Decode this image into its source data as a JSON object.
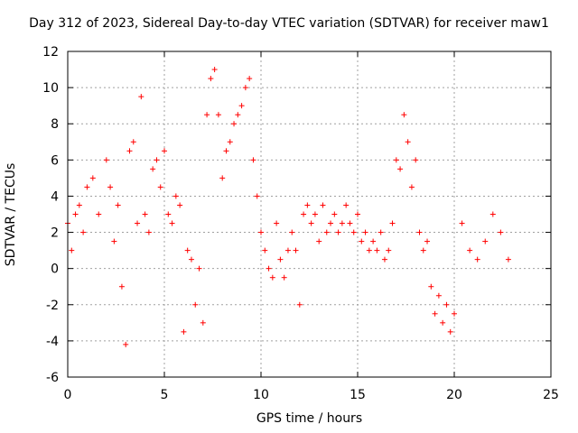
{
  "chart_data": {
    "type": "scatter",
    "title": "Day 312 of 2023, Sidereal Day-to-day VTEC variation (SDTVAR) for receiver maw1",
    "xlabel": "GPS time / hours",
    "ylabel": "SDTVAR / TECUs",
    "xlim": [
      0,
      25
    ],
    "ylim": [
      -6,
      12
    ],
    "xticks": [
      "0",
      "5",
      "10",
      "15",
      "20",
      "25"
    ],
    "yticks": [
      "-6",
      "-4",
      "-2",
      "0",
      "2",
      "4",
      "6",
      "8",
      "10",
      "12"
    ],
    "grid": true,
    "marker": "+",
    "color": "#ff0000",
    "series": [
      {
        "name": "SDTVAR",
        "x": [
          0.0,
          0.2,
          0.4,
          0.6,
          0.8,
          1.0,
          1.3,
          1.6,
          2.0,
          2.2,
          2.4,
          2.6,
          2.8,
          3.0,
          3.2,
          3.4,
          3.6,
          3.8,
          4.0,
          4.2,
          4.4,
          4.6,
          4.8,
          5.0,
          5.2,
          5.4,
          5.6,
          5.8,
          6.0,
          6.2,
          6.4,
          6.6,
          6.8,
          7.0,
          7.2,
          7.4,
          7.6,
          7.8,
          8.0,
          8.2,
          8.4,
          8.6,
          8.8,
          9.0,
          9.2,
          9.4,
          9.6,
          9.8,
          10.0,
          10.2,
          10.4,
          10.6,
          10.8,
          11.0,
          11.2,
          11.4,
          11.6,
          11.8,
          12.0,
          12.2,
          12.4,
          12.6,
          12.8,
          13.0,
          13.2,
          13.4,
          13.6,
          13.8,
          14.0,
          14.2,
          14.4,
          14.6,
          14.8,
          15.0,
          15.2,
          15.4,
          15.6,
          15.8,
          16.0,
          16.2,
          16.4,
          16.6,
          16.8,
          17.0,
          17.2,
          17.4,
          17.6,
          17.8,
          18.0,
          18.2,
          18.4,
          18.6,
          18.8,
          19.0,
          19.2,
          19.4,
          19.6,
          19.8,
          20.0,
          20.4,
          20.8,
          21.2,
          21.6,
          22.0,
          22.4,
          22.8
        ],
        "y": [
          2.5,
          1.0,
          3.0,
          3.5,
          2.0,
          4.5,
          5.0,
          3.0,
          6.0,
          4.5,
          1.5,
          3.5,
          -1.0,
          -4.2,
          6.5,
          7.0,
          2.5,
          9.5,
          3.0,
          2.0,
          5.5,
          6.0,
          4.5,
          6.5,
          3.0,
          2.5,
          4.0,
          3.5,
          -3.5,
          1.0,
          0.5,
          -2.0,
          0.0,
          -3.0,
          8.5,
          10.5,
          11.0,
          8.5,
          5.0,
          6.5,
          7.0,
          8.0,
          8.5,
          9.0,
          10.0,
          10.5,
          6.0,
          4.0,
          2.0,
          1.0,
          0.0,
          -0.5,
          2.5,
          0.5,
          -0.5,
          1.0,
          2.0,
          1.0,
          -2.0,
          3.0,
          3.5,
          2.5,
          3.0,
          1.5,
          3.5,
          2.0,
          2.5,
          3.0,
          2.0,
          2.5,
          3.5,
          2.5,
          2.0,
          3.0,
          1.5,
          2.0,
          1.0,
          1.5,
          1.0,
          2.0,
          0.5,
          1.0,
          2.5,
          6.0,
          5.5,
          8.5,
          7.0,
          4.5,
          6.0,
          2.0,
          1.0,
          1.5,
          -1.0,
          -2.5,
          -1.5,
          -3.0,
          -2.0,
          -3.5,
          -2.5,
          2.5,
          1.0,
          0.5,
          1.5,
          3.0,
          2.0,
          0.5
        ]
      }
    ]
  }
}
